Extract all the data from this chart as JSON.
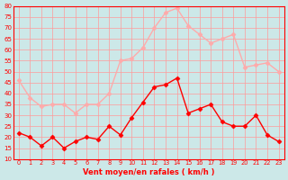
{
  "hours": [
    0,
    1,
    2,
    3,
    4,
    5,
    6,
    7,
    8,
    9,
    10,
    11,
    12,
    13,
    14,
    15,
    16,
    17,
    18,
    19,
    20,
    21,
    22,
    23
  ],
  "vent_moyen": [
    22,
    20,
    16,
    20,
    15,
    18,
    20,
    19,
    25,
    21,
    29,
    36,
    43,
    44,
    47,
    31,
    33,
    35,
    27,
    25,
    25,
    30,
    21,
    18
  ],
  "en_rafales": [
    46,
    38,
    34,
    35,
    35,
    31,
    35,
    35,
    40,
    55,
    56,
    61,
    70,
    77,
    79,
    71,
    67,
    63,
    65,
    67,
    52,
    53,
    54,
    50
  ],
  "bg_color": "#cce8e8",
  "grid_color": "#ff9999",
  "line_moyen_color": "#ff0000",
  "line_rafales_color": "#ffaaaa",
  "marker_moyen_color": "#ff0000",
  "marker_rafales_color": "#ffaaaa",
  "xlabel": "Vent moyen/en rafales ( km/h )",
  "xlabel_color": "#ff0000",
  "tick_color": "#ff0000",
  "spine_color": "#ff0000",
  "ylim": [
    10,
    80
  ],
  "yticks": [
    10,
    15,
    20,
    25,
    30,
    35,
    40,
    45,
    50,
    55,
    60,
    65,
    70,
    75,
    80
  ]
}
